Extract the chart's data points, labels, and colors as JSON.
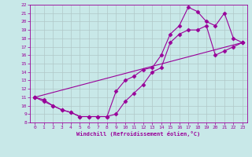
{
  "line1_x": [
    0,
    1,
    2,
    3,
    4,
    5,
    6,
    7,
    8,
    9,
    10,
    11,
    12,
    13,
    14,
    15,
    16,
    17,
    18,
    19,
    20,
    21,
    22,
    23
  ],
  "line1_y": [
    11,
    10.7,
    10.0,
    9.5,
    9.2,
    8.7,
    8.7,
    8.7,
    8.7,
    11.7,
    13.0,
    13.5,
    14.3,
    14.5,
    16.0,
    18.5,
    19.5,
    21.7,
    21.2,
    20.0,
    19.5,
    21.0,
    18.0,
    17.5
  ],
  "line2_x": [
    0,
    1,
    2,
    3,
    4,
    5,
    6,
    7,
    8,
    9,
    10,
    11,
    12,
    13,
    14,
    15,
    16,
    17,
    18,
    19,
    20,
    21,
    22,
    23
  ],
  "line2_y": [
    11,
    10.5,
    10.0,
    9.5,
    9.2,
    8.7,
    8.7,
    8.7,
    8.7,
    9.0,
    10.5,
    11.5,
    12.5,
    14.0,
    14.5,
    17.5,
    18.5,
    19.0,
    19.0,
    19.5,
    16.0,
    16.5,
    17.0,
    17.5
  ],
  "line3_x": [
    0,
    23
  ],
  "line3_y": [
    11,
    17.5
  ],
  "color": "#990099",
  "bg_color": "#c8e8e8",
  "grid_color": "#b0c8c8",
  "xlabel": "Windchill (Refroidissement éolien,°C)",
  "ylim": [
    8,
    22
  ],
  "xlim": [
    -0.5,
    23.5
  ],
  "yticks": [
    8,
    9,
    10,
    11,
    12,
    13,
    14,
    15,
    16,
    17,
    18,
    19,
    20,
    21,
    22
  ],
  "xticks": [
    0,
    1,
    2,
    3,
    4,
    5,
    6,
    7,
    8,
    9,
    10,
    11,
    12,
    13,
    14,
    15,
    16,
    17,
    18,
    19,
    20,
    21,
    22,
    23
  ],
  "markersize": 2.5,
  "linewidth": 0.8
}
